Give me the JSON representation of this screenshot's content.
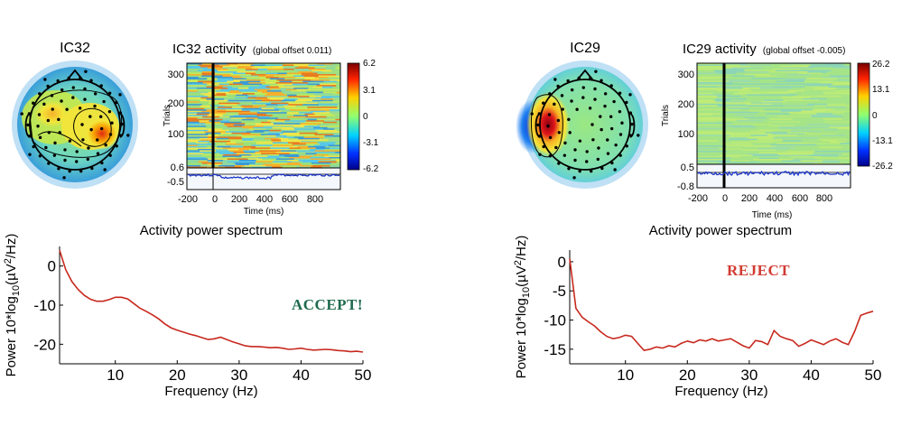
{
  "components": [
    {
      "id": "IC32",
      "map_title": "IC32",
      "activity_title_main": "IC32 activity",
      "activity_title_sub": "(global offset 0.011)",
      "erpimage_yticks": [
        "300",
        "200",
        "100"
      ],
      "erpimage_ylabel": "Trials",
      "erpimage_xticks": [
        "-200",
        "0",
        "200",
        "400",
        "600",
        "800"
      ],
      "erpimage_xlabel": "Time (ms)",
      "erp_yticks": [
        "0.6",
        "-0.5"
      ],
      "colorbar_ticks": [
        "6.2",
        "3.1",
        "0",
        "-3.1",
        "-6.2"
      ],
      "spectrum_title": "Activity power spectrum",
      "verdict": "ACCEPT!",
      "verdict_color": "#1f6b4e",
      "map_hotspot_color": "#d92a0c",
      "spectrum_color": "#c8281e"
    },
    {
      "id": "IC29",
      "map_title": "IC29",
      "activity_title_main": "IC29 activity",
      "activity_title_sub": "(global offset -0.005)",
      "erpimage_yticks": [
        "300",
        "200",
        "100"
      ],
      "erpimage_ylabel": "Trials",
      "erpimage_xticks": [
        "-200",
        "0",
        "200",
        "400",
        "600",
        "800"
      ],
      "erpimage_xlabel": "Time (ms)",
      "erp_yticks": [
        "0.5",
        "-0.8"
      ],
      "colorbar_ticks": [
        "26.2",
        "13.1",
        "0",
        "-13.1",
        "-26.2"
      ],
      "spectrum_title": "Activity power spectrum",
      "verdict": "REJECT",
      "verdict_color": "#d23b33",
      "map_hotspot_color": "#a8000a",
      "spectrum_color": "#c8281e"
    }
  ],
  "chart_data": [
    {
      "type": "line",
      "title": "Activity power spectrum",
      "xlabel": "Frequency (Hz)",
      "ylabel": "Power 10*log10(µV²/Hz)",
      "xlim": [
        1,
        50
      ],
      "ylim": [
        -25,
        5
      ],
      "xticks": [
        10,
        20,
        30,
        40,
        50
      ],
      "yticks": [
        0,
        -10,
        -20
      ],
      "series": [
        {
          "x": [
            1,
            2,
            3,
            4,
            5,
            6,
            7,
            8,
            9,
            10,
            11,
            12,
            13,
            14,
            15,
            16,
            17,
            18,
            19,
            20,
            21,
            22,
            23,
            24,
            25,
            26,
            27,
            28,
            29,
            30,
            31,
            32,
            33,
            34,
            35,
            36,
            37,
            38,
            39,
            40,
            41,
            42,
            43,
            44,
            45,
            46,
            47,
            48,
            49,
            50
          ],
          "y": [
            4,
            -1,
            -4,
            -6,
            -7.5,
            -8.5,
            -9,
            -9,
            -8.6,
            -8,
            -8,
            -8.4,
            -9.6,
            -10.8,
            -11.6,
            -12.5,
            -13.5,
            -14.8,
            -15.8,
            -16.4,
            -16.9,
            -17.4,
            -17.8,
            -18.3,
            -18.8,
            -18.6,
            -18.2,
            -18.8,
            -19.4,
            -19.9,
            -20.4,
            -20.6,
            -20.6,
            -20.7,
            -20.9,
            -20.8,
            -21,
            -21.3,
            -21.2,
            -21,
            -21.3,
            -21.5,
            -21.4,
            -21.3,
            -21.4,
            -21.6,
            -21.7,
            -21.9,
            -21.8,
            -22
          ]
        }
      ]
    },
    {
      "type": "line",
      "title": "Activity power spectrum",
      "xlabel": "Frequency (Hz)",
      "ylabel": "Power 10*log10(µV²/Hz)",
      "xlim": [
        1,
        50
      ],
      "ylim": [
        -17.5,
        2
      ],
      "xticks": [
        10,
        20,
        30,
        40,
        50
      ],
      "yticks": [
        0,
        -5,
        -10,
        -15
      ],
      "series": [
        {
          "x": [
            1,
            2,
            3,
            4,
            5,
            6,
            7,
            8,
            9,
            10,
            11,
            12,
            13,
            14,
            15,
            16,
            17,
            18,
            19,
            20,
            21,
            22,
            23,
            24,
            25,
            26,
            27,
            28,
            29,
            30,
            31,
            32,
            33,
            34,
            35,
            36,
            37,
            38,
            39,
            40,
            41,
            42,
            43,
            44,
            45,
            46,
            47,
            48,
            49,
            50
          ],
          "y": [
            0.5,
            -8,
            -9.5,
            -10.3,
            -11,
            -12,
            -12.8,
            -13.2,
            -13,
            -12.6,
            -12.8,
            -14,
            -15.2,
            -15,
            -14.6,
            -14.8,
            -14.4,
            -14.6,
            -14,
            -13.6,
            -13.9,
            -13.4,
            -13.6,
            -13.2,
            -13.6,
            -13.4,
            -13.2,
            -13.8,
            -14.4,
            -14.8,
            -13.5,
            -13.7,
            -14.2,
            -11.8,
            -12.8,
            -13.2,
            -13.5,
            -14.5,
            -14,
            -13.4,
            -13.8,
            -14.2,
            -13.6,
            -13.2,
            -13.8,
            -14.2,
            -12,
            -9.2,
            -8.8,
            -8.5
          ]
        }
      ]
    }
  ]
}
